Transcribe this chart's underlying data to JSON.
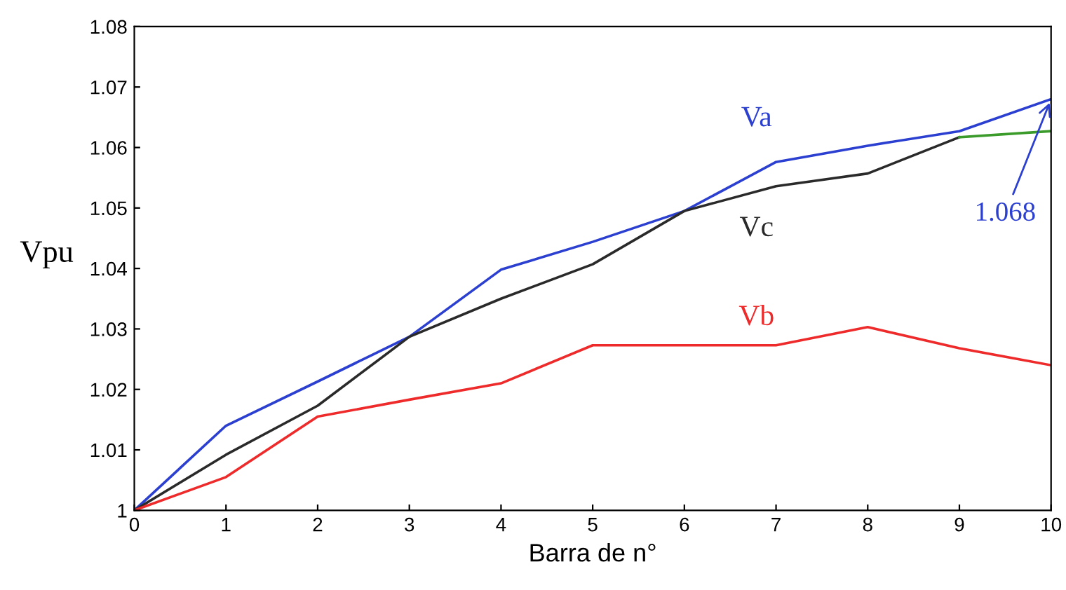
{
  "chart_data": {
    "type": "line",
    "xlabel": "Barra de n°",
    "ylabel": "Vpu",
    "x": [
      0,
      1,
      2,
      3,
      4,
      5,
      6,
      7,
      8,
      9,
      10
    ],
    "series": [
      {
        "name": "Va",
        "color": "#2b3fd0",
        "values": [
          1.0,
          1.014,
          1.0213,
          1.0287,
          1.0398,
          1.0444,
          1.0495,
          1.0576,
          1.0603,
          1.0627,
          1.068
        ]
      },
      {
        "name": "Vc",
        "color": "#2a2a2a",
        "values": [
          1.0,
          1.0092,
          1.0173,
          1.0287,
          1.035,
          1.0407,
          1.0495,
          1.0536,
          1.0557,
          1.0617,
          null
        ]
      },
      {
        "color": "#3a9a2a",
        "x": [
          9,
          10
        ],
        "values": [
          1.0617,
          1.0627
        ]
      },
      {
        "name": "Vb",
        "color": "#ee2a2a",
        "values": [
          1.0,
          1.0055,
          1.0155,
          1.0183,
          1.021,
          1.0273,
          1.0273,
          1.0273,
          1.0303,
          1.0268,
          1.024
        ]
      }
    ],
    "xlim": [
      0,
      10
    ],
    "xticks": [
      0,
      1,
      2,
      3,
      4,
      5,
      6,
      7,
      8,
      9,
      10
    ],
    "ylim": [
      1,
      1.08
    ],
    "yticks": [
      1,
      1.01,
      1.02,
      1.03,
      1.04,
      1.05,
      1.06,
      1.07,
      1.08
    ],
    "annotations": [
      {
        "text": "1.068",
        "x": 10,
        "y": 1.068
      }
    ],
    "grid": false,
    "legend": false,
    "marker": "none",
    "line_style": "solid"
  }
}
